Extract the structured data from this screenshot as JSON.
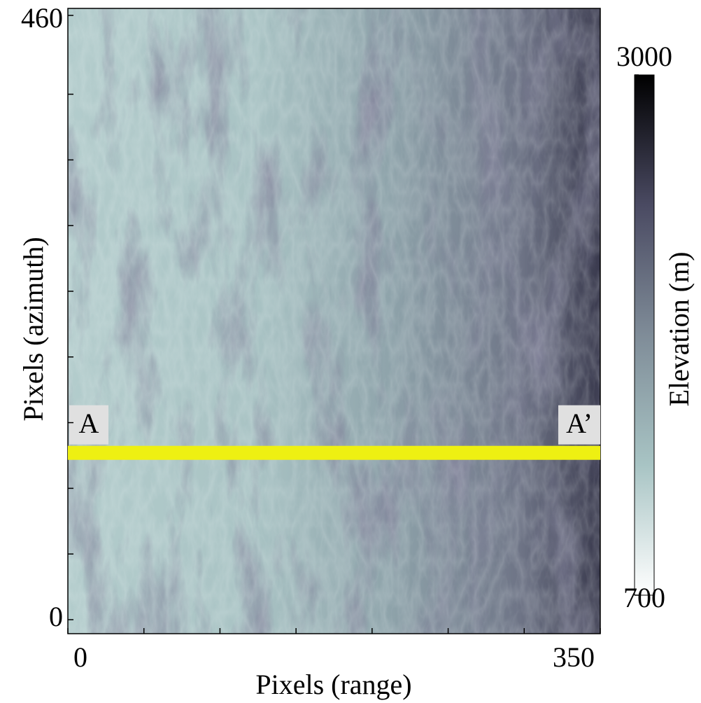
{
  "chart_data": {
    "type": "image",
    "xlabel": "Pixels (range)",
    "ylabel": "Pixels (azimuth)",
    "xlim": [
      0,
      350
    ],
    "ylim": [
      0,
      460
    ],
    "xticks": [
      0,
      350
    ],
    "yticks": [
      0,
      460
    ],
    "minor_xticks": [
      50,
      100,
      150,
      200,
      250,
      300
    ],
    "minor_yticks": [
      50,
      100,
      150,
      200,
      250,
      300,
      350,
      400
    ],
    "profile": {
      "y": 127,
      "color": "#eef012",
      "start_label": "A",
      "end_label": "A’"
    },
    "colorbar": {
      "label": "Elevation (m)",
      "lim": [
        700,
        3000
      ],
      "ticks": [
        700,
        3000
      ],
      "colors": [
        "#ffffff",
        "#a8c4c4",
        "#7f8c98",
        "#4a4a62",
        "#000000"
      ]
    }
  }
}
